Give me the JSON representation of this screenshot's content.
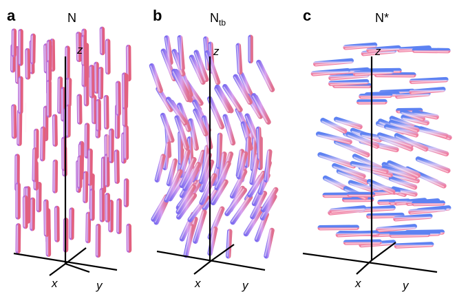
{
  "colors": {
    "rod_pink": "#f07fa0",
    "rod_blue": "#6f7df0",
    "rod_light": "#f6d8e8",
    "axis": "#000000"
  },
  "panels": [
    {
      "letter": "a",
      "title": "N",
      "title_sub": "",
      "axes": {
        "z": "z",
        "x": "x",
        "y": "y"
      },
      "description": "nematic: rods aligned along z"
    },
    {
      "letter": "b",
      "title": "N",
      "title_sub": "tb",
      "axes": {
        "z": "z",
        "x": "x",
        "y": "y"
      },
      "description": "twist-bend nematic: oblique heliconical rods"
    },
    {
      "letter": "c",
      "title": "N*",
      "title_sub": "",
      "axes": {
        "z": "z",
        "x": "x",
        "y": "y"
      },
      "description": "cholesteric: rods in layers perpendicular to z, director twisting"
    }
  ]
}
